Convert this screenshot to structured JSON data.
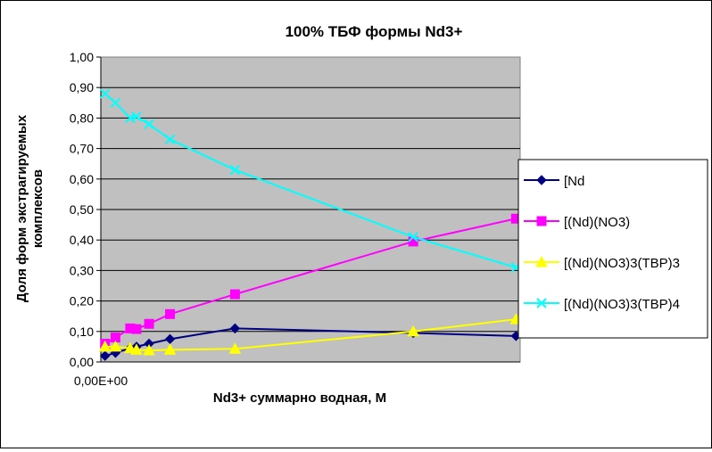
{
  "chart_data": {
    "type": "line",
    "title": "100%  ТБФ  формы Nd3+",
    "xlabel": "Nd3+ суммарно  водная, М",
    "ylabel_lines": [
      "Доля форм экстрагируемых",
      "комплексов"
    ],
    "ylim": [
      0,
      1
    ],
    "yticks": [
      0,
      0.1,
      0.2,
      0.3,
      0.4,
      0.5,
      0.6,
      0.7,
      0.8,
      0.9,
      1.0
    ],
    "ytick_labels": [
      "0,00",
      "0,10",
      "0,20",
      "0,30",
      "0,40",
      "0,50",
      "0,60",
      "0,70",
      "0,80",
      "0,90",
      "1,00"
    ],
    "xlim": [
      0,
      1
    ],
    "x_tick_label": "0,00E+00",
    "grid": "horizontal",
    "legend_placement": "right",
    "plot_background": "#c0c0c0",
    "x": [
      0.01,
      0.035,
      0.07,
      0.085,
      0.115,
      0.165,
      0.32,
      0.745,
      0.99
    ],
    "series": [
      {
        "name": "[Nd",
        "color": "#000080",
        "marker": "diamond",
        "values": [
          0.02,
          0.03,
          0.045,
          0.05,
          0.06,
          0.075,
          0.11,
          0.095,
          0.085
        ]
      },
      {
        "name": "[(Nd)(NO3)",
        "color": "#ff00ff",
        "marker": "square",
        "values": [
          0.06,
          0.08,
          0.11,
          0.108,
          0.125,
          0.157,
          0.222,
          0.395,
          0.47
        ]
      },
      {
        "name": "[(Nd)(NO3)3(TBP)3",
        "color": "#ffff00",
        "marker": "triangle",
        "values": [
          0.05,
          0.05,
          0.045,
          0.04,
          0.038,
          0.04,
          0.043,
          0.1,
          0.14
        ]
      },
      {
        "name": "[(Nd)(NO3)3(TBP)4",
        "color": "#00ffff",
        "marker": "x",
        "values": [
          0.88,
          0.85,
          0.8,
          0.805,
          0.78,
          0.73,
          0.63,
          0.41,
          0.31
        ]
      }
    ]
  }
}
